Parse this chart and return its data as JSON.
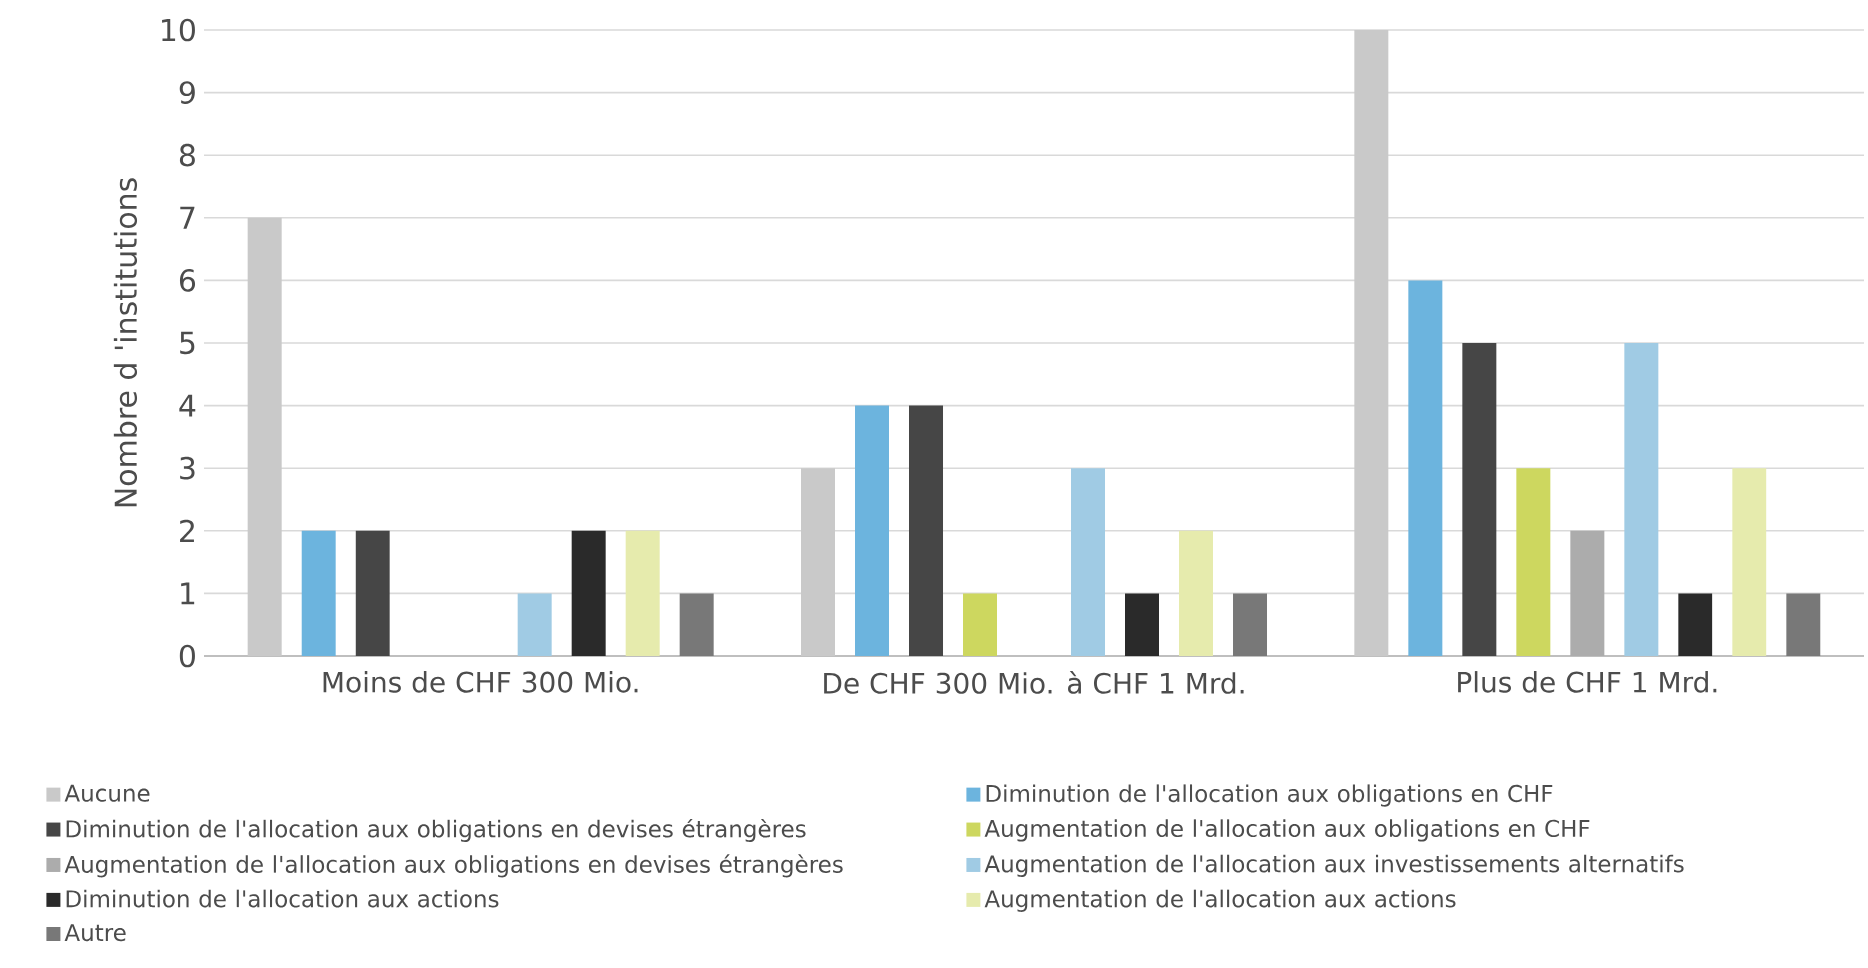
{
  "chart_data": {
    "type": "bar",
    "ylabel": "Nombre d 'institutions",
    "categories": [
      "Moins de CHF 300 Mio.",
      "De CHF 300 Mio. à CHF 1 Mrd.",
      "Plus de CHF 1 Mrd."
    ],
    "series": [
      {
        "name": "Aucune",
        "color": "#c9c9c9",
        "values": [
          7,
          3,
          10
        ]
      },
      {
        "name": "Diminution de l'allocation aux obligations en CHF",
        "color": "#6cb4de",
        "values": [
          2,
          4,
          6
        ]
      },
      {
        "name": "Diminution de l'allocation aux obligations en devises étrangères",
        "color": "#464646",
        "values": [
          2,
          4,
          5
        ]
      },
      {
        "name": "Augmentation de l'allocation aux obligations en CHF",
        "color": "#cdd75f",
        "values": [
          0,
          1,
          3
        ]
      },
      {
        "name": "Augmentation de l'allocation aux obligations en devises étrangères",
        "color": "#acacac",
        "values": [
          0,
          0,
          2
        ]
      },
      {
        "name": "Augmentation de l'allocation aux investissements alternatifs",
        "color": "#a0cbe4",
        "values": [
          1,
          3,
          5
        ]
      },
      {
        "name": "Diminution de l'allocation aux actions",
        "color": "#2a2a2a",
        "values": [
          2,
          1,
          1
        ]
      },
      {
        "name": "Augmentation de l'allocation aux actions",
        "color": "#e6ebad",
        "values": [
          2,
          2,
          3
        ]
      },
      {
        "name": "Autre",
        "color": "#787878",
        "values": [
          1,
          1,
          1
        ]
      }
    ],
    "ylim": [
      0,
      10
    ],
    "yticks": [
      0,
      1,
      2,
      3,
      4,
      5,
      6,
      7,
      8,
      9,
      10
    ],
    "grid": "y",
    "legend": "bottom"
  }
}
